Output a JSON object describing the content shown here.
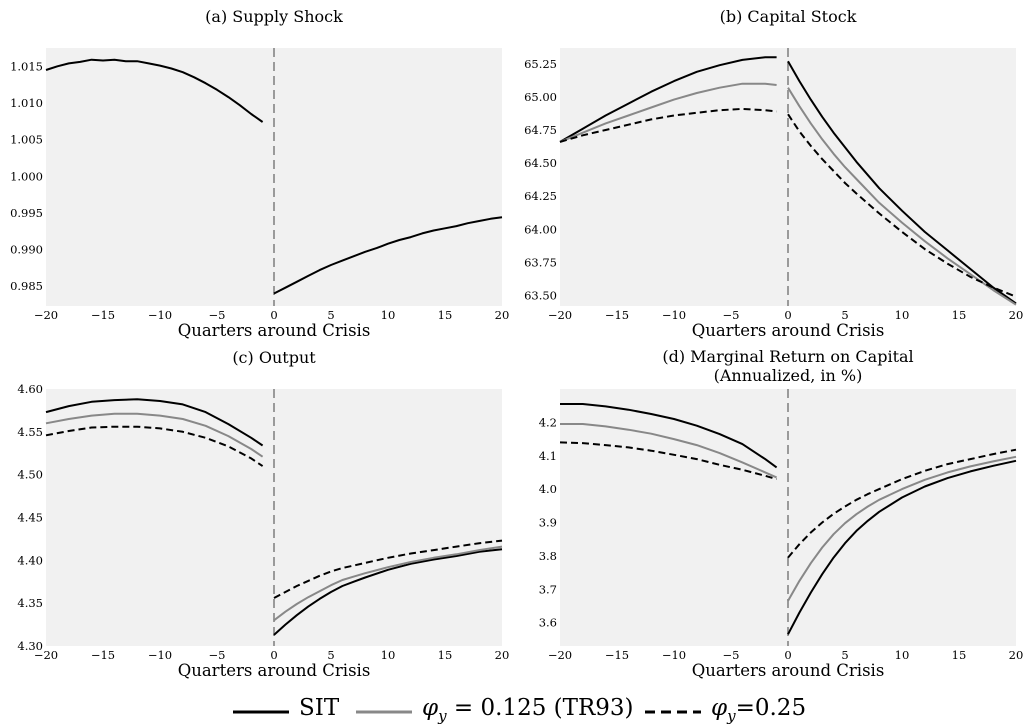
{
  "figure": {
    "legend": [
      {
        "label": "SIT",
        "series_key": "sit"
      },
      {
        "label": "φy = 0.125 (TR93)",
        "series_key": "tr93",
        "label_main": "φ",
        "label_sub": "y",
        "label_rest": " = 0.125 (TR93)"
      },
      {
        "label": "φy=0.25",
        "series_key": "phi25",
        "label_main": "φ",
        "label_sub": "y",
        "label_rest": "=0.25"
      }
    ],
    "series_styles": {
      "sit": {
        "color": "#000000",
        "dash": "solid"
      },
      "tr93": {
        "color": "#888888",
        "dash": "solid"
      },
      "phi25": {
        "color": "#000000",
        "dash": "dashed"
      }
    },
    "plot_background": "#f1f1f1",
    "crisis_line_color": "#9a9a9a"
  },
  "chart_data": [
    {
      "type": "line",
      "title": "(a) Supply Shock",
      "xlabel": "Quarters around Crisis",
      "ylabel": "",
      "xlim": [
        -20,
        20
      ],
      "ylim": [
        0.9823,
        1.0175
      ],
      "xticks": [
        "−20",
        "−15",
        "−10",
        "−5",
        "0",
        "5",
        "10",
        "15",
        "20"
      ],
      "yticks": [
        0.985,
        0.99,
        0.995,
        1.0,
        1.005,
        1.01,
        1.015
      ],
      "ytick_labels": [
        "0.985",
        "0.990",
        "0.995",
        "1.000",
        "1.005",
        "1.010",
        "1.015"
      ],
      "crisis_at": 0,
      "series": [
        {
          "key": "sit",
          "segments": [
            {
              "x": [
                -20,
                -19,
                -18,
                -17,
                -16,
                -15,
                -14,
                -13,
                -12,
                -11,
                -10,
                -9,
                -8,
                -7,
                -6,
                -5,
                -4,
                -3,
                -2,
                -1
              ],
              "y": [
                1.0145,
                1.015,
                1.0154,
                1.0156,
                1.0159,
                1.0158,
                1.0159,
                1.0157,
                1.0157,
                1.0154,
                1.0151,
                1.0147,
                1.0142,
                1.0135,
                1.0127,
                1.0118,
                1.0108,
                1.0097,
                1.0085,
                1.0074
              ]
            },
            {
              "x": [
                0,
                1,
                2,
                3,
                4,
                5,
                6,
                7,
                8,
                9,
                10,
                11,
                12,
                13,
                14,
                15,
                16,
                17,
                18,
                19,
                20
              ],
              "y": [
                0.984,
                0.9848,
                0.9856,
                0.9864,
                0.9872,
                0.9879,
                0.9885,
                0.9891,
                0.9897,
                0.9902,
                0.9908,
                0.9913,
                0.9917,
                0.9922,
                0.9926,
                0.9929,
                0.9932,
                0.9936,
                0.9939,
                0.9942,
                0.9944
              ]
            }
          ]
        }
      ]
    },
    {
      "type": "line",
      "title": "(b) Capital Stock",
      "xlabel": "Quarters around Crisis",
      "ylabel": "",
      "xlim": [
        -20,
        20
      ],
      "ylim": [
        63.42,
        65.37
      ],
      "xticks": [
        "−20",
        "−15",
        "−10",
        "−5",
        "0",
        "5",
        "10",
        "15",
        "20"
      ],
      "yticks": [
        63.5,
        63.75,
        64.0,
        64.25,
        64.5,
        64.75,
        65.0,
        65.25
      ],
      "ytick_labels": [
        "63.50",
        "63.75",
        "64.00",
        "64.25",
        "64.50",
        "64.75",
        "65.00",
        "65.25"
      ],
      "crisis_at": 0,
      "series": [
        {
          "key": "sit",
          "segments": [
            {
              "x": [
                -20,
                -18,
                -16,
                -14,
                -12,
                -10,
                -8,
                -6,
                -4,
                -2,
                -1
              ],
              "y": [
                64.66,
                64.76,
                64.86,
                64.95,
                65.04,
                65.12,
                65.19,
                65.24,
                65.28,
                65.3,
                65.3
              ]
            },
            {
              "x": [
                0,
                1,
                2,
                3,
                4,
                5,
                6,
                8,
                10,
                12,
                14,
                16,
                18,
                20
              ],
              "y": [
                65.27,
                65.12,
                64.98,
                64.85,
                64.73,
                64.62,
                64.51,
                64.31,
                64.14,
                63.98,
                63.84,
                63.7,
                63.56,
                63.44
              ]
            }
          ]
        },
        {
          "key": "tr93",
          "segments": [
            {
              "x": [
                -20,
                -18,
                -16,
                -14,
                -12,
                -10,
                -8,
                -6,
                -4,
                -2,
                -1
              ],
              "y": [
                64.66,
                64.73,
                64.8,
                64.86,
                64.92,
                64.98,
                65.03,
                65.07,
                65.1,
                65.1,
                65.09
              ]
            },
            {
              "x": [
                0,
                1,
                2,
                3,
                4,
                5,
                6,
                8,
                10,
                12,
                14,
                16,
                18,
                20
              ],
              "y": [
                65.07,
                64.93,
                64.8,
                64.68,
                64.57,
                64.47,
                64.38,
                64.2,
                64.05,
                63.91,
                63.78,
                63.66,
                63.54,
                63.43
              ]
            }
          ]
        },
        {
          "key": "phi25",
          "segments": [
            {
              "x": [
                -20,
                -18,
                -16,
                -14,
                -12,
                -10,
                -8,
                -6,
                -4,
                -2,
                -1
              ],
              "y": [
                64.66,
                64.71,
                64.75,
                64.79,
                64.83,
                64.86,
                64.88,
                64.9,
                64.91,
                64.9,
                64.89
              ]
            },
            {
              "x": [
                0,
                1,
                2,
                3,
                4,
                5,
                6,
                8,
                10,
                12,
                14,
                16,
                18,
                20
              ],
              "y": [
                64.87,
                64.74,
                64.63,
                64.53,
                64.44,
                64.35,
                64.27,
                64.12,
                63.98,
                63.85,
                63.74,
                63.64,
                63.56,
                63.49
              ]
            }
          ]
        }
      ]
    },
    {
      "type": "line",
      "title": "(c) Output",
      "xlabel": "Quarters around Crisis",
      "ylabel": "",
      "xlim": [
        -20,
        20
      ],
      "ylim": [
        4.3,
        4.6
      ],
      "xticks": [
        "−20",
        "−15",
        "−10",
        "−5",
        "0",
        "5",
        "10",
        "15",
        "20"
      ],
      "yticks": [
        4.3,
        4.35,
        4.4,
        4.45,
        4.5,
        4.55,
        4.6
      ],
      "ytick_labels": [
        "4.30",
        "4.35",
        "4.40",
        "4.45",
        "4.50",
        "4.55",
        "4.60"
      ],
      "crisis_at": 0,
      "series": [
        {
          "key": "sit",
          "segments": [
            {
              "x": [
                -20,
                -18,
                -16,
                -14,
                -12,
                -10,
                -8,
                -6,
                -4,
                -2,
                -1
              ],
              "y": [
                4.573,
                4.58,
                4.585,
                4.587,
                4.588,
                4.586,
                4.582,
                4.573,
                4.559,
                4.543,
                4.534
              ]
            },
            {
              "x": [
                0,
                1,
                2,
                3,
                4,
                5,
                6,
                7,
                8,
                10,
                12,
                14,
                16,
                18,
                20
              ],
              "y": [
                4.313,
                4.325,
                4.336,
                4.346,
                4.355,
                4.363,
                4.37,
                4.375,
                4.38,
                4.389,
                4.396,
                4.401,
                4.405,
                4.41,
                4.413
              ]
            }
          ]
        },
        {
          "key": "tr93",
          "segments": [
            {
              "x": [
                -20,
                -18,
                -16,
                -14,
                -12,
                -10,
                -8,
                -6,
                -4,
                -2,
                -1
              ],
              "y": [
                4.56,
                4.565,
                4.569,
                4.571,
                4.571,
                4.569,
                4.565,
                4.557,
                4.545,
                4.53,
                4.521
              ]
            },
            {
              "x": [
                0,
                1,
                2,
                3,
                4,
                5,
                6,
                7,
                8,
                10,
                12,
                14,
                16,
                18,
                20
              ],
              "y": [
                4.33,
                4.34,
                4.349,
                4.357,
                4.364,
                4.371,
                4.377,
                4.381,
                4.385,
                4.392,
                4.398,
                4.403,
                4.407,
                4.412,
                4.416
              ]
            }
          ]
        },
        {
          "key": "phi25",
          "segments": [
            {
              "x": [
                -20,
                -18,
                -16,
                -14,
                -12,
                -10,
                -8,
                -6,
                -4,
                -2,
                -1
              ],
              "y": [
                4.546,
                4.551,
                4.555,
                4.556,
                4.556,
                4.554,
                4.55,
                4.543,
                4.533,
                4.519,
                4.51
              ]
            },
            {
              "x": [
                0,
                1,
                2,
                3,
                4,
                5,
                6,
                7,
                8,
                10,
                12,
                14,
                16,
                18,
                20
              ],
              "y": [
                4.356,
                4.363,
                4.37,
                4.376,
                4.382,
                4.387,
                4.391,
                4.394,
                4.397,
                4.403,
                4.408,
                4.412,
                4.416,
                4.42,
                4.423
              ]
            }
          ]
        }
      ]
    },
    {
      "type": "line",
      "title": "(d) Marginal Return on Capital",
      "subtitle": "(Annualized, in %)",
      "xlabel": "Quarters around Crisis",
      "ylabel": "",
      "xlim": [
        -20,
        20
      ],
      "ylim": [
        3.53,
        4.3
      ],
      "xticks": [
        "−20",
        "−15",
        "−10",
        "−5",
        "0",
        "5",
        "10",
        "15",
        "20"
      ],
      "yticks": [
        3.6,
        3.7,
        3.8,
        3.9,
        4.0,
        4.1,
        4.2
      ],
      "ytick_labels": [
        "3.6",
        "3.7",
        "3.8",
        "3.9",
        "4.0",
        "4.1",
        "4.2"
      ],
      "crisis_at": 0,
      "series": [
        {
          "key": "sit",
          "segments": [
            {
              "x": [
                -20,
                -18,
                -16,
                -14,
                -12,
                -10,
                -8,
                -6,
                -4,
                -2,
                -1
              ],
              "y": [
                4.255,
                4.255,
                4.248,
                4.238,
                4.225,
                4.21,
                4.19,
                4.165,
                4.135,
                4.09,
                4.065
              ]
            },
            {
              "x": [
                0,
                1,
                2,
                3,
                4,
                5,
                6,
                7,
                8,
                10,
                12,
                14,
                16,
                18,
                20
              ],
              "y": [
                3.565,
                3.63,
                3.69,
                3.745,
                3.795,
                3.838,
                3.875,
                3.905,
                3.932,
                3.975,
                4.008,
                4.033,
                4.053,
                4.07,
                4.085
              ]
            }
          ]
        },
        {
          "key": "tr93",
          "segments": [
            {
              "x": [
                -20,
                -18,
                -16,
                -14,
                -12,
                -10,
                -8,
                -6,
                -4,
                -2,
                -1
              ],
              "y": [
                4.195,
                4.195,
                4.188,
                4.178,
                4.166,
                4.15,
                4.132,
                4.108,
                4.08,
                4.05,
                4.035
              ]
            },
            {
              "x": [
                0,
                1,
                2,
                3,
                4,
                5,
                6,
                7,
                8,
                10,
                12,
                14,
                16,
                18,
                20
              ],
              "y": [
                3.665,
                3.725,
                3.778,
                3.825,
                3.865,
                3.898,
                3.925,
                3.948,
                3.968,
                4.0,
                4.028,
                4.05,
                4.068,
                4.083,
                4.097
              ]
            }
          ]
        },
        {
          "key": "phi25",
          "segments": [
            {
              "x": [
                -20,
                -18,
                -16,
                -14,
                -12,
                -10,
                -8,
                -6,
                -4,
                -2,
                -1
              ],
              "y": [
                4.14,
                4.138,
                4.132,
                4.125,
                4.115,
                4.103,
                4.09,
                4.073,
                4.058,
                4.04,
                4.03
              ]
            },
            {
              "x": [
                0,
                1,
                2,
                3,
                4,
                5,
                6,
                7,
                8,
                10,
                12,
                14,
                16,
                18,
                20
              ],
              "y": [
                3.795,
                3.835,
                3.87,
                3.9,
                3.926,
                3.948,
                3.968,
                3.985,
                4.0,
                4.03,
                4.055,
                4.075,
                4.09,
                4.105,
                4.118
              ]
            }
          ]
        }
      ]
    }
  ]
}
